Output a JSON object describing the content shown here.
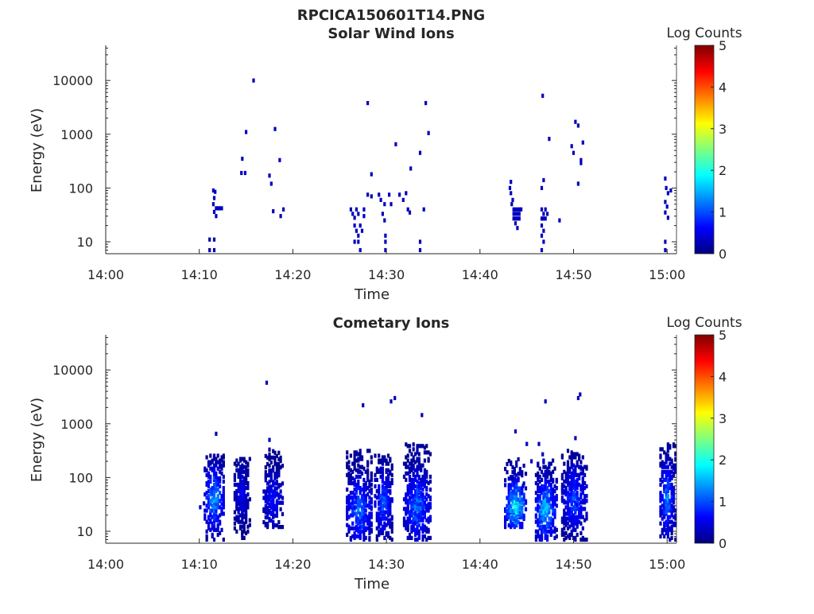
{
  "figure_title": "RPCICA150601T14.PNG",
  "colors": {
    "colormap": [
      "#00007f",
      "#0000ff",
      "#007fff",
      "#00ffff",
      "#7fff7f",
      "#ffff00",
      "#ff7f00",
      "#ff0000",
      "#7f0000"
    ],
    "axis": "#262626"
  },
  "chart_data": [
    {
      "type": "heatmap",
      "title": "Solar Wind Ions",
      "xlabel": "Time",
      "ylabel": "Energy (eV)",
      "xlim": [
        "14:00",
        "15:01"
      ],
      "ylim": [
        6,
        45000
      ],
      "yscale": "log",
      "xticks": [
        "14:00",
        "14:10",
        "14:20",
        "14:30",
        "14:40",
        "14:50",
        "15:00"
      ],
      "yticks": [
        "10",
        "100",
        "1000",
        "10000"
      ],
      "colorbar": {
        "label": "Log Counts",
        "range": [
          0,
          5
        ],
        "ticks": [
          "0",
          "1",
          "2",
          "3",
          "4",
          "5"
        ]
      },
      "cells": [
        [
          11.1,
          11,
          0.2
        ],
        [
          11.1,
          7,
          0.2
        ],
        [
          11.6,
          11,
          0.2
        ],
        [
          11.6,
          7,
          0.2
        ],
        [
          11.5,
          90,
          0.3
        ],
        [
          11.7,
          85,
          0.3
        ],
        [
          11.6,
          65,
          0.3
        ],
        [
          11.5,
          50,
          0.3
        ],
        [
          11.8,
          42,
          0.3
        ],
        [
          12.0,
          42,
          0.3
        ],
        [
          12.2,
          42,
          0.3
        ],
        [
          12.4,
          42,
          0.3
        ],
        [
          11.6,
          36,
          0.3
        ],
        [
          11.8,
          30,
          0.3
        ],
        [
          14.6,
          350,
          0.3
        ],
        [
          15.0,
          1100,
          0.3
        ],
        [
          15.8,
          10000,
          0.3
        ],
        [
          14.5,
          190,
          0.3
        ],
        [
          14.9,
          190,
          0.3
        ],
        [
          17.5,
          170,
          0.3
        ],
        [
          17.7,
          120,
          0.3
        ],
        [
          18.1,
          1250,
          0.3
        ],
        [
          18.6,
          330,
          0.3
        ],
        [
          17.9,
          37,
          0.3
        ],
        [
          18.7,
          30,
          0.3
        ],
        [
          19.0,
          40,
          0.3
        ],
        [
          26.2,
          40,
          0.3
        ],
        [
          26.4,
          33,
          0.3
        ],
        [
          26.6,
          28,
          0.3
        ],
        [
          26.8,
          40,
          0.3
        ],
        [
          27.0,
          33,
          0.3
        ],
        [
          26.6,
          20,
          0.3
        ],
        [
          26.8,
          16,
          0.3
        ],
        [
          27.0,
          13,
          0.3
        ],
        [
          26.6,
          10,
          0.3
        ],
        [
          27.0,
          10,
          0.3
        ],
        [
          27.2,
          20,
          0.3
        ],
        [
          27.4,
          16,
          0.3
        ],
        [
          27.2,
          7,
          0.3
        ],
        [
          27.6,
          40,
          0.3
        ],
        [
          27.6,
          30,
          0.3
        ],
        [
          28.0,
          3800,
          0.3
        ],
        [
          28.4,
          180,
          0.3
        ],
        [
          28.0,
          75,
          0.3
        ],
        [
          28.4,
          70,
          0.3
        ],
        [
          29.2,
          75,
          0.3
        ],
        [
          29.4,
          60,
          0.3
        ],
        [
          29.8,
          50,
          0.3
        ],
        [
          29.6,
          33,
          0.3
        ],
        [
          29.8,
          25,
          0.3
        ],
        [
          29.9,
          13,
          0.3
        ],
        [
          29.9,
          10,
          0.3
        ],
        [
          29.9,
          7,
          0.3
        ],
        [
          30.3,
          75,
          0.3
        ],
        [
          30.5,
          50,
          0.3
        ],
        [
          31.0,
          650,
          0.3
        ],
        [
          31.4,
          75,
          0.3
        ],
        [
          31.8,
          60,
          0.3
        ],
        [
          32.1,
          80,
          0.3
        ],
        [
          32.3,
          40,
          0.3
        ],
        [
          32.5,
          35,
          0.3
        ],
        [
          32.6,
          230,
          0.3
        ],
        [
          33.6,
          450,
          0.3
        ],
        [
          33.6,
          10,
          0.3
        ],
        [
          33.6,
          7,
          0.3
        ],
        [
          34.2,
          3800,
          0.3
        ],
        [
          34.5,
          1050,
          0.3
        ],
        [
          34.0,
          40,
          0.3
        ],
        [
          43.3,
          130,
          0.3
        ],
        [
          43.2,
          100,
          0.3
        ],
        [
          43.3,
          80,
          0.3
        ],
        [
          43.5,
          60,
          0.3
        ],
        [
          43.4,
          50,
          0.3
        ],
        [
          43.6,
          40,
          0.3
        ],
        [
          43.8,
          40,
          0.3
        ],
        [
          44.0,
          40,
          0.3
        ],
        [
          44.2,
          40,
          0.3
        ],
        [
          44.4,
          40,
          0.3
        ],
        [
          43.6,
          33,
          0.3
        ],
        [
          43.8,
          33,
          0.3
        ],
        [
          44.0,
          33,
          0.3
        ],
        [
          44.2,
          33,
          0.3
        ],
        [
          43.6,
          27,
          0.3
        ],
        [
          43.8,
          27,
          0.3
        ],
        [
          44.0,
          27,
          0.3
        ],
        [
          44.2,
          27,
          0.3
        ],
        [
          43.8,
          22,
          0.3
        ],
        [
          44.0,
          18,
          0.3
        ],
        [
          46.7,
          5200,
          0.3
        ],
        [
          47.4,
          820,
          0.3
        ],
        [
          46.8,
          140,
          0.3
        ],
        [
          46.6,
          100,
          0.3
        ],
        [
          46.6,
          40,
          0.3
        ],
        [
          46.8,
          33,
          0.3
        ],
        [
          47.0,
          40,
          0.3
        ],
        [
          47.2,
          33,
          0.3
        ],
        [
          46.6,
          27,
          0.3
        ],
        [
          46.8,
          27,
          0.3
        ],
        [
          47.0,
          27,
          0.3
        ],
        [
          46.6,
          20,
          0.3
        ],
        [
          46.8,
          16,
          0.3
        ],
        [
          46.6,
          13,
          0.3
        ],
        [
          46.8,
          10,
          0.3
        ],
        [
          46.6,
          7,
          0.3
        ],
        [
          48.5,
          25,
          0.3
        ],
        [
          49.8,
          600,
          0.3
        ],
        [
          50.0,
          450,
          0.3
        ],
        [
          50.2,
          1700,
          0.3
        ],
        [
          50.5,
          1450,
          0.3
        ],
        [
          50.8,
          290,
          0.3
        ],
        [
          50.8,
          330,
          0.3
        ],
        [
          51.0,
          700,
          0.3
        ],
        [
          50.5,
          120,
          0.3
        ],
        [
          59.8,
          150,
          0.3
        ],
        [
          59.9,
          100,
          0.3
        ],
        [
          60.1,
          80,
          0.3
        ],
        [
          59.8,
          55,
          0.3
        ],
        [
          60.0,
          45,
          0.3
        ],
        [
          59.8,
          35,
          0.3
        ],
        [
          60.1,
          28,
          0.3
        ],
        [
          59.8,
          10,
          0.3
        ],
        [
          59.8,
          7,
          0.3
        ],
        [
          60.4,
          90,
          0.3
        ]
      ]
    },
    {
      "type": "heatmap",
      "title": "Cometary Ions",
      "xlabel": "Time",
      "ylabel": "Energy (eV)",
      "xlim": [
        "14:00",
        "15:01"
      ],
      "ylim": [
        6,
        45000
      ],
      "yscale": "log",
      "xticks": [
        "14:00",
        "14:10",
        "14:20",
        "14:30",
        "14:40",
        "14:50",
        "15:00"
      ],
      "yticks": [
        "10",
        "100",
        "1000",
        "10000"
      ],
      "colorbar": {
        "label": "Log Counts",
        "range": [
          0,
          5
        ],
        "ticks": [
          "0",
          "1",
          "2",
          "3",
          "4",
          "5"
        ]
      },
      "bursts": [
        {
          "t0": 10.6,
          "t1": 12.6,
          "emin": 7,
          "emax": 260,
          "peak": 1.7,
          "peak_e": 40
        },
        {
          "t0": 13.8,
          "t1": 15.3,
          "emin": 7,
          "emax": 220,
          "peak": 0.7,
          "peak_e": 50
        },
        {
          "t0": 16.9,
          "t1": 18.8,
          "emin": 12,
          "emax": 320,
          "peak": 0.9,
          "peak_e": 40
        },
        {
          "t0": 25.8,
          "t1": 28.5,
          "emin": 7,
          "emax": 320,
          "peak": 1.4,
          "peak_e": 25
        },
        {
          "t0": 28.8,
          "t1": 30.6,
          "emin": 7,
          "emax": 260,
          "peak": 1.3,
          "peak_e": 35
        },
        {
          "t0": 31.9,
          "t1": 34.7,
          "emin": 7,
          "emax": 400,
          "peak": 1.4,
          "peak_e": 30
        },
        {
          "t0": 42.7,
          "t1": 45.0,
          "emin": 12,
          "emax": 220,
          "peak": 2.2,
          "peak_e": 30
        },
        {
          "t0": 46.0,
          "t1": 48.1,
          "emin": 7,
          "emax": 200,
          "peak": 2.0,
          "peak_e": 25
        },
        {
          "t0": 48.8,
          "t1": 51.4,
          "emin": 7,
          "emax": 320,
          "peak": 1.2,
          "peak_e": 40
        },
        {
          "t0": 59.3,
          "t1": 60.8,
          "emin": 7,
          "emax": 400,
          "peak": 1.5,
          "peak_e": 40
        }
      ],
      "cells": [
        [
          17.2,
          5800,
          0.3
        ],
        [
          27.5,
          2200,
          0.3
        ],
        [
          30.5,
          2600,
          0.3
        ],
        [
          30.9,
          3000,
          0.3
        ],
        [
          33.8,
          1450,
          0.3
        ],
        [
          47.0,
          2600,
          0.3
        ],
        [
          50.5,
          3000,
          0.3
        ],
        [
          50.7,
          3500,
          0.3
        ],
        [
          11.8,
          650,
          0.3
        ],
        [
          17.5,
          500,
          0.3
        ],
        [
          43.8,
          720,
          0.3
        ],
        [
          45.0,
          420,
          0.3
        ],
        [
          46.3,
          420,
          0.3
        ],
        [
          46.7,
          270,
          0.3
        ],
        [
          50.2,
          540,
          0.3
        ],
        [
          10.1,
          28,
          0.3
        ],
        [
          10.5,
          33,
          0.3
        ],
        [
          44.6,
          70,
          0.3
        ],
        [
          45.5,
          200,
          0.3
        ]
      ]
    }
  ]
}
